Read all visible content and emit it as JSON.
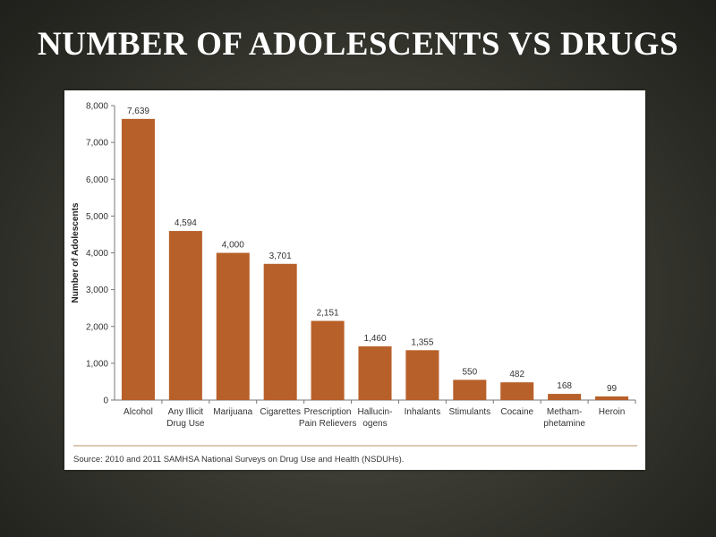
{
  "slide_title": "NUMBER OF ADOLESCENTS VS DRUGS",
  "colors": {
    "bar": "#B8602A",
    "axis": "#777777",
    "source_rule": "#C8A989"
  },
  "chart_data": {
    "type": "bar",
    "title": "",
    "xlabel": "",
    "ylabel": "Number of Adolescents",
    "ylim": [
      0,
      8000
    ],
    "yticks": [
      "0",
      "1,000",
      "2,000",
      "3,000",
      "4,000",
      "5,000",
      "6,000",
      "7,000",
      "8,000"
    ],
    "categories": [
      [
        "Alcohol"
      ],
      [
        "Any Illicit",
        "Drug Use"
      ],
      [
        "Marijuana"
      ],
      [
        "Cigarettes"
      ],
      [
        "Prescription",
        "Pain Relievers"
      ],
      [
        "Hallucin-",
        "ogens"
      ],
      [
        "Inhalants"
      ],
      [
        "Stimulants"
      ],
      [
        "Cocaine"
      ],
      [
        "Metham-",
        "phetamine"
      ],
      [
        "Heroin"
      ]
    ],
    "values": [
      7639,
      4594,
      4000,
      3701,
      2151,
      1460,
      1355,
      550,
      482,
      168,
      99
    ],
    "value_labels": [
      "7,639",
      "4,594",
      "4,000",
      "3,701",
      "2,151",
      "1,460",
      "1,355",
      "550",
      "482",
      "168",
      "99"
    ],
    "grid": false,
    "source": "Source: 2010 and 2011 SAMHSA National Surveys on Drug Use and Health (NSDUHs)."
  }
}
